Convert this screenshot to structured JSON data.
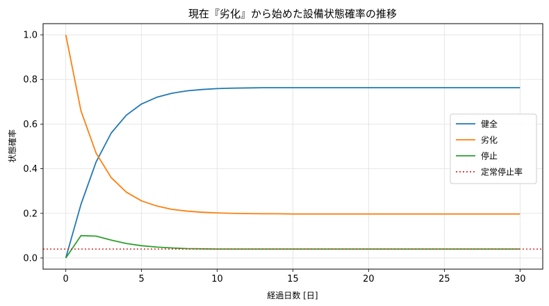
{
  "chart_data": {
    "type": "line",
    "title": "現在『劣化』から始めた設備状態確率の推移",
    "xlabel": "経過日数 [日]",
    "ylabel": "状態確率",
    "xlim": [
      -1.5,
      31.5
    ],
    "ylim": [
      -0.05,
      1.05
    ],
    "xticks": [
      0,
      5,
      10,
      15,
      20,
      25,
      30
    ],
    "yticks": [
      0.0,
      0.2,
      0.4,
      0.6,
      0.8,
      1.0
    ],
    "grid": true,
    "legend_position": "center-right",
    "x": [
      0,
      1,
      2,
      3,
      4,
      5,
      6,
      7,
      8,
      9,
      10,
      11,
      12,
      13,
      14,
      15,
      16,
      17,
      18,
      19,
      20,
      21,
      22,
      23,
      24,
      25,
      26,
      27,
      28,
      29,
      30
    ],
    "series": [
      {
        "name": "健全",
        "color": "#1f77b4",
        "style": "solid",
        "values": [
          0.0,
          0.24,
          0.43,
          0.56,
          0.64,
          0.69,
          0.72,
          0.738,
          0.749,
          0.755,
          0.759,
          0.761,
          0.762,
          0.763,
          0.763,
          0.763,
          0.763,
          0.763,
          0.763,
          0.763,
          0.763,
          0.763,
          0.763,
          0.763,
          0.763,
          0.763,
          0.763,
          0.763,
          0.763,
          0.763,
          0.763
        ]
      },
      {
        "name": "劣化",
        "color": "#ff7f0e",
        "style": "solid",
        "values": [
          1.0,
          0.66,
          0.47,
          0.36,
          0.295,
          0.256,
          0.233,
          0.218,
          0.21,
          0.205,
          0.202,
          0.2,
          0.199,
          0.198,
          0.198,
          0.197,
          0.197,
          0.197,
          0.197,
          0.197,
          0.197,
          0.197,
          0.197,
          0.197,
          0.197,
          0.197,
          0.197,
          0.197,
          0.197,
          0.197,
          0.197
        ]
      },
      {
        "name": "停止",
        "color": "#2ca02c",
        "style": "solid",
        "values": [
          0.0,
          0.1,
          0.098,
          0.08,
          0.065,
          0.055,
          0.049,
          0.045,
          0.042,
          0.041,
          0.04,
          0.04,
          0.04,
          0.04,
          0.04,
          0.04,
          0.04,
          0.04,
          0.04,
          0.04,
          0.04,
          0.04,
          0.04,
          0.04,
          0.04,
          0.04,
          0.04,
          0.04,
          0.04,
          0.04,
          0.04
        ]
      }
    ],
    "hlines": [
      {
        "name": "定常停止率",
        "y": 0.04,
        "color": "#d62728",
        "style": "dotted"
      }
    ]
  }
}
